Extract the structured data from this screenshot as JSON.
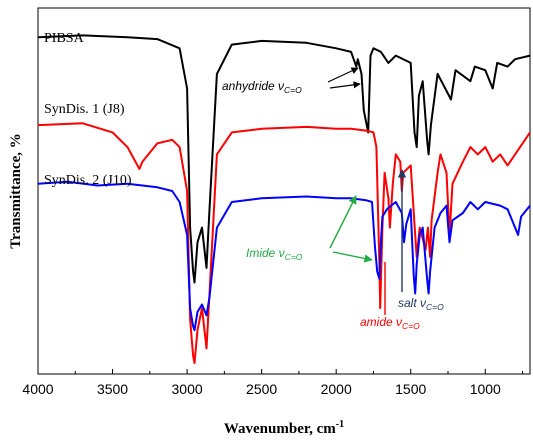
{
  "chart_data": {
    "type": "line",
    "title": "",
    "xlabel": "Wavenumber, cm",
    "xlabel_sup": "-1",
    "ylabel": "Transmittance, %",
    "xlim": [
      4000,
      700
    ],
    "x_reversed": true,
    "x_ticks": [
      "4000",
      "3500",
      "3000",
      "2500",
      "2000",
      "1500",
      "1000"
    ],
    "y_ticks": [],
    "y_range_relative": [
      0,
      100
    ],
    "grid": false,
    "legend": "none",
    "series": [
      {
        "name": "PIBSA",
        "color": "#000000",
        "points": [
          [
            4000,
            92
          ],
          [
            3700,
            92.5
          ],
          [
            3400,
            92
          ],
          [
            3200,
            91.5
          ],
          [
            3050,
            89
          ],
          [
            3000,
            78
          ],
          [
            2980,
            40
          ],
          [
            2960,
            28
          ],
          [
            2950,
            25
          ],
          [
            2930,
            36
          ],
          [
            2900,
            40
          ],
          [
            2870,
            29
          ],
          [
            2850,
            45
          ],
          [
            2800,
            82
          ],
          [
            2700,
            90
          ],
          [
            2500,
            91
          ],
          [
            2200,
            90.5
          ],
          [
            2000,
            89
          ],
          [
            1900,
            88
          ],
          [
            1865,
            84
          ],
          [
            1855,
            86
          ],
          [
            1830,
            82
          ],
          [
            1815,
            72
          ],
          [
            1785,
            66
          ],
          [
            1770,
            87
          ],
          [
            1750,
            89
          ],
          [
            1700,
            88
          ],
          [
            1650,
            85
          ],
          [
            1600,
            87
          ],
          [
            1500,
            85
          ],
          [
            1475,
            66
          ],
          [
            1460,
            62
          ],
          [
            1445,
            76
          ],
          [
            1420,
            80
          ],
          [
            1390,
            64
          ],
          [
            1380,
            60
          ],
          [
            1365,
            68
          ],
          [
            1320,
            82
          ],
          [
            1230,
            75
          ],
          [
            1200,
            83
          ],
          [
            1100,
            80
          ],
          [
            1070,
            84
          ],
          [
            1000,
            83
          ],
          [
            950,
            78
          ],
          [
            920,
            85
          ],
          [
            850,
            84
          ],
          [
            800,
            86
          ],
          [
            700,
            87
          ]
        ]
      },
      {
        "name": "SynDis. 1 (J8)",
        "color": "#ff0000",
        "points": [
          [
            4000,
            68
          ],
          [
            3700,
            68.5
          ],
          [
            3500,
            66
          ],
          [
            3400,
            62
          ],
          [
            3320,
            56
          ],
          [
            3300,
            58
          ],
          [
            3200,
            63
          ],
          [
            3100,
            64
          ],
          [
            3050,
            62
          ],
          [
            3000,
            50
          ],
          [
            2980,
            15
          ],
          [
            2960,
            5
          ],
          [
            2950,
            3
          ],
          [
            2930,
            12
          ],
          [
            2900,
            18
          ],
          [
            2870,
            7
          ],
          [
            2850,
            22
          ],
          [
            2800,
            60
          ],
          [
            2700,
            66
          ],
          [
            2500,
            67
          ],
          [
            2200,
            67.5
          ],
          [
            2000,
            67
          ],
          [
            1900,
            67
          ],
          [
            1800,
            66.5
          ],
          [
            1750,
            66
          ],
          [
            1730,
            62
          ],
          [
            1710,
            30
          ],
          [
            1705,
            18
          ],
          [
            1690,
            40
          ],
          [
            1675,
            55
          ],
          [
            1650,
            48
          ],
          [
            1640,
            40
          ],
          [
            1620,
            52
          ],
          [
            1600,
            60
          ],
          [
            1570,
            58
          ],
          [
            1560,
            50
          ],
          [
            1550,
            55
          ],
          [
            1500,
            57
          ],
          [
            1470,
            38
          ],
          [
            1460,
            32
          ],
          [
            1440,
            40
          ],
          [
            1420,
            37
          ],
          [
            1400,
            34
          ],
          [
            1385,
            40
          ],
          [
            1370,
            32
          ],
          [
            1360,
            42
          ],
          [
            1320,
            55
          ],
          [
            1300,
            60
          ],
          [
            1260,
            55
          ],
          [
            1240,
            38
          ],
          [
            1220,
            52
          ],
          [
            1150,
            58
          ],
          [
            1100,
            62
          ],
          [
            1050,
            60
          ],
          [
            1000,
            62
          ],
          [
            950,
            58
          ],
          [
            900,
            60
          ],
          [
            850,
            57
          ],
          [
            800,
            60
          ],
          [
            700,
            66
          ]
        ]
      },
      {
        "name": "SynDis. 2 (J10)",
        "color": "#0000ff",
        "points": [
          [
            4000,
            52
          ],
          [
            3800,
            52.5
          ],
          [
            3600,
            51.5
          ],
          [
            3400,
            52
          ],
          [
            3200,
            51
          ],
          [
            3100,
            50
          ],
          [
            3050,
            47
          ],
          [
            3000,
            38
          ],
          [
            2980,
            18
          ],
          [
            2960,
            13
          ],
          [
            2950,
            12
          ],
          [
            2930,
            17
          ],
          [
            2900,
            19
          ],
          [
            2870,
            16
          ],
          [
            2850,
            21
          ],
          [
            2800,
            40
          ],
          [
            2700,
            47
          ],
          [
            2500,
            48
          ],
          [
            2200,
            48.5
          ],
          [
            2000,
            48
          ],
          [
            1900,
            48
          ],
          [
            1800,
            47.5
          ],
          [
            1760,
            47
          ],
          [
            1740,
            35
          ],
          [
            1725,
            28
          ],
          [
            1710,
            26
          ],
          [
            1700,
            36
          ],
          [
            1690,
            43
          ],
          [
            1660,
            45
          ],
          [
            1630,
            46
          ],
          [
            1600,
            47
          ],
          [
            1560,
            44
          ],
          [
            1545,
            36
          ],
          [
            1530,
            41
          ],
          [
            1500,
            45
          ],
          [
            1480,
            27
          ],
          [
            1470,
            22
          ],
          [
            1460,
            30
          ],
          [
            1440,
            38
          ],
          [
            1420,
            40
          ],
          [
            1390,
            26
          ],
          [
            1380,
            22
          ],
          [
            1370,
            28
          ],
          [
            1340,
            40
          ],
          [
            1300,
            44
          ],
          [
            1260,
            46
          ],
          [
            1240,
            36
          ],
          [
            1220,
            42
          ],
          [
            1150,
            44
          ],
          [
            1100,
            47
          ],
          [
            1050,
            45
          ],
          [
            1000,
            47
          ],
          [
            900,
            46
          ],
          [
            850,
            45
          ],
          [
            800,
            40
          ],
          [
            780,
            38
          ],
          [
            760,
            43
          ],
          [
            700,
            46
          ]
        ]
      }
    ],
    "series_labels": [
      {
        "text": "PIBSA"
      },
      {
        "text": "SynDis. 1 (J8)"
      },
      {
        "text": "SynDis. 2 (J10)"
      }
    ],
    "annotations": [
      {
        "text": "anhydride ν",
        "sub": "C=O",
        "color": "#000000"
      },
      {
        "text": "Imide ν",
        "sub": "C=O",
        "color": "#22aa44"
      },
      {
        "text": "salt ν",
        "sub": "C=O",
        "color": "#1f3864"
      },
      {
        "text": "amide ν",
        "sub": "C=O",
        "color": "#ff0000"
      }
    ]
  }
}
